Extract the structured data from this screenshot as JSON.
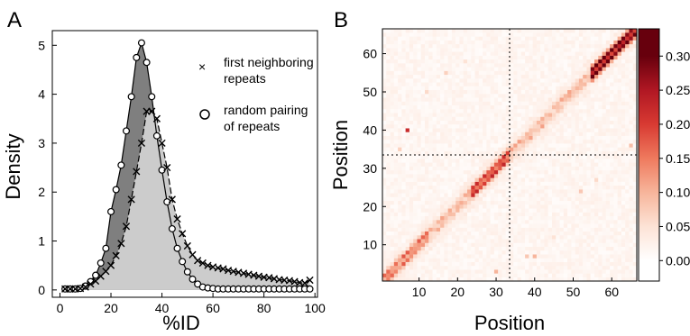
{
  "chart_data": [
    {
      "panel_label": "A",
      "type": "area",
      "xlabel": "%ID",
      "ylabel": "Density",
      "xlim": [
        -3,
        101
      ],
      "ylim": [
        -0.15,
        5.3
      ],
      "xticks": [
        0,
        20,
        40,
        60,
        80,
        100
      ],
      "yticks": [
        0,
        1,
        2,
        3,
        4,
        5
      ],
      "legend_position": "top-right",
      "series": [
        {
          "name": "first neighboring repeats",
          "marker": "x",
          "fill": "#cccccc",
          "x": [
            2,
            4,
            6,
            8,
            10,
            12,
            14,
            16,
            18,
            20,
            22,
            24,
            26,
            28,
            30,
            32,
            34,
            36,
            38,
            40,
            42,
            44,
            46,
            48,
            50,
            52,
            54,
            56,
            58,
            60,
            62,
            64,
            66,
            68,
            70,
            72,
            74,
            76,
            78,
            80,
            82,
            84,
            86,
            88,
            90,
            92,
            94,
            96,
            98
          ],
          "values": [
            0.02,
            0.02,
            0.02,
            0.03,
            0.06,
            0.12,
            0.18,
            0.28,
            0.38,
            0.5,
            0.7,
            0.95,
            1.3,
            1.85,
            2.42,
            3.0,
            3.65,
            3.65,
            3.5,
            3.0,
            2.5,
            1.85,
            1.45,
            1.15,
            0.9,
            0.72,
            0.6,
            0.55,
            0.5,
            0.47,
            0.45,
            0.43,
            0.4,
            0.38,
            0.36,
            0.34,
            0.32,
            0.3,
            0.28,
            0.26,
            0.25,
            0.23,
            0.21,
            0.2,
            0.19,
            0.17,
            0.15,
            0.14,
            0.2
          ]
        },
        {
          "name": "random pairing of repeats",
          "marker": "o",
          "fill": "#7f7f7f",
          "x": [
            2,
            4,
            6,
            8,
            10,
            12,
            14,
            16,
            18,
            20,
            22,
            24,
            26,
            28,
            30,
            32,
            34,
            36,
            38,
            40,
            42,
            44,
            46,
            48,
            50,
            52,
            54,
            56,
            58,
            60,
            62,
            64,
            66,
            68,
            70,
            72,
            74,
            76,
            78,
            80,
            82,
            84,
            86,
            88,
            90,
            92,
            94,
            96,
            98
          ],
          "values": [
            0.02,
            0.02,
            0.02,
            0.03,
            0.08,
            0.17,
            0.3,
            0.55,
            0.85,
            1.6,
            2.05,
            2.55,
            3.25,
            3.95,
            4.75,
            5.05,
            4.65,
            3.95,
            3.15,
            2.45,
            1.8,
            1.25,
            0.85,
            0.58,
            0.37,
            0.22,
            0.12,
            0.06,
            0.04,
            0.03,
            0.02,
            0.02,
            0.02,
            0.02,
            0.02,
            0.02,
            0.02,
            0.02,
            0.02,
            0.02,
            0.02,
            0.02,
            0.02,
            0.02,
            0.02,
            0.02,
            0.02,
            0.02,
            0.02
          ]
        }
      ],
      "legend_text": {
        "first_line1": "first neighboring",
        "first_line2": "repeats",
        "random_line1": "random pairing",
        "random_line2": "of repeats"
      }
    },
    {
      "panel_label": "B",
      "type": "heatmap",
      "xlabel": "Position",
      "ylabel": "Position",
      "xlim": [
        1,
        66
      ],
      "ylim": [
        1,
        66
      ],
      "xticks": [
        10,
        20,
        30,
        40,
        50,
        60
      ],
      "yticks": [
        10,
        20,
        30,
        40,
        50,
        60
      ],
      "divider_position": 33.5,
      "colorbar": {
        "min": -0.03,
        "max": 0.34,
        "ticks": [
          "0.00",
          "0.05",
          "0.10",
          "0.15",
          "0.20",
          "0.25",
          "0.30"
        ],
        "tick_values": [
          0.0,
          0.05,
          0.1,
          0.15,
          0.2,
          0.25,
          0.3
        ],
        "colors": [
          "#ffffff",
          "#fde3d6",
          "#f7b59b",
          "#ef7a5e",
          "#d83a32",
          "#b01723",
          "#67000d"
        ]
      },
      "hotspots": [
        {
          "x": 7,
          "y": 40,
          "value": 0.22
        },
        {
          "x": 40,
          "y": 7,
          "value": 0.1
        },
        {
          "x": 38,
          "y": 7,
          "value": 0.08
        },
        {
          "x": 30,
          "y": 3,
          "value": 0.1
        },
        {
          "x": 52,
          "y": 24,
          "value": 0.08
        },
        {
          "x": 65,
          "y": 36,
          "value": 0.09
        },
        {
          "x": 17,
          "y": 55,
          "value": 0.07
        },
        {
          "x": 12,
          "y": 50,
          "value": 0.06
        },
        {
          "x": 45,
          "y": 12,
          "value": 0.05
        },
        {
          "x": 56,
          "y": 27,
          "value": 0.06
        },
        {
          "x": 22,
          "y": 58,
          "value": 0.05
        },
        {
          "x": 5,
          "y": 35,
          "value": 0.07
        }
      ]
    }
  ]
}
